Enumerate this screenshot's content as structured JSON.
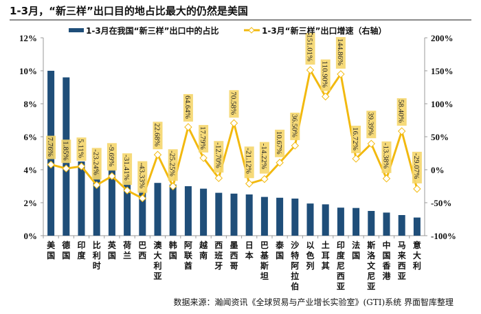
{
  "title": "1-3月，“新三样”出口目的地占比最大的仍然是美国",
  "source": "数据来源：瀚闻资讯《全球贸易与产业增长实验室》(GTI)系统  界面智库整理",
  "chart_data": {
    "type": "bar+line",
    "categories": [
      "美国",
      "德国",
      "印度",
      "比利时",
      "英国",
      "荷兰",
      "巴西",
      "澳大利亚",
      "韩国",
      "阿联酋",
      "越南",
      "西班牙",
      "墨西哥",
      "日本",
      "巴基斯坦",
      "泰国",
      "沙特阿拉伯",
      "以色列",
      "土耳其",
      "印度尼西亚",
      "法国",
      "斯洛文尼亚",
      "中国香港",
      "马来西亚",
      "意大利"
    ],
    "series": [
      {
        "name": "1-3月在我国“新三样”出口中的占比",
        "type": "bar",
        "axis": "left",
        "color": "#1f4e79",
        "values": [
          10.0,
          9.6,
          4.5,
          4.0,
          4.0,
          3.3,
          2.7,
          3.2,
          3.1,
          3.0,
          2.85,
          2.6,
          2.55,
          2.5,
          2.35,
          2.3,
          2.25,
          1.95,
          1.9,
          1.7,
          1.68,
          1.5,
          1.4,
          1.25,
          1.1
        ]
      },
      {
        "name": "1-3月“新三样”出口增速（右轴）",
        "type": "line",
        "axis": "right",
        "color": "#f2b90f",
        "values": [
          7.76,
          1.85,
          5.11,
          -23.24,
          -9.69,
          -31.41,
          -43.33,
          22.68,
          -25.25,
          64.64,
          17.79,
          -12.7,
          70.58,
          -21.12,
          -14.22,
          10.67,
          36.5,
          151.01,
          110.9,
          144.86,
          16.72,
          39.39,
          -13.38,
          58.4,
          -29.07
        ],
        "labels": [
          "7.76%",
          "1.85%",
          "5.11%",
          "-23.24%",
          "-9.69%",
          "-31.41%",
          "-43.33%",
          "22.68%",
          "-25.25%",
          "64.64%",
          "17.79%",
          "-12.70%",
          "70.58%",
          "-21.12%",
          "-14.22%",
          "10.67%",
          "36.50%",
          "151.01%",
          "110.90%",
          "144.86%",
          "16.72%",
          "39.39%",
          "-13.38%",
          "58.40%",
          "-29.07%"
        ]
      }
    ],
    "left_axis": {
      "ylim": [
        0,
        12
      ],
      "ticks": [
        "0%",
        "2%",
        "4%",
        "6%",
        "8%",
        "10%",
        "12%"
      ]
    },
    "right_axis": {
      "ylim": [
        -100,
        200
      ],
      "ticks": [
        "-100%",
        "-50%",
        "0%",
        "50%",
        "100%",
        "150%",
        "200%"
      ]
    },
    "legend": "top-center"
  }
}
